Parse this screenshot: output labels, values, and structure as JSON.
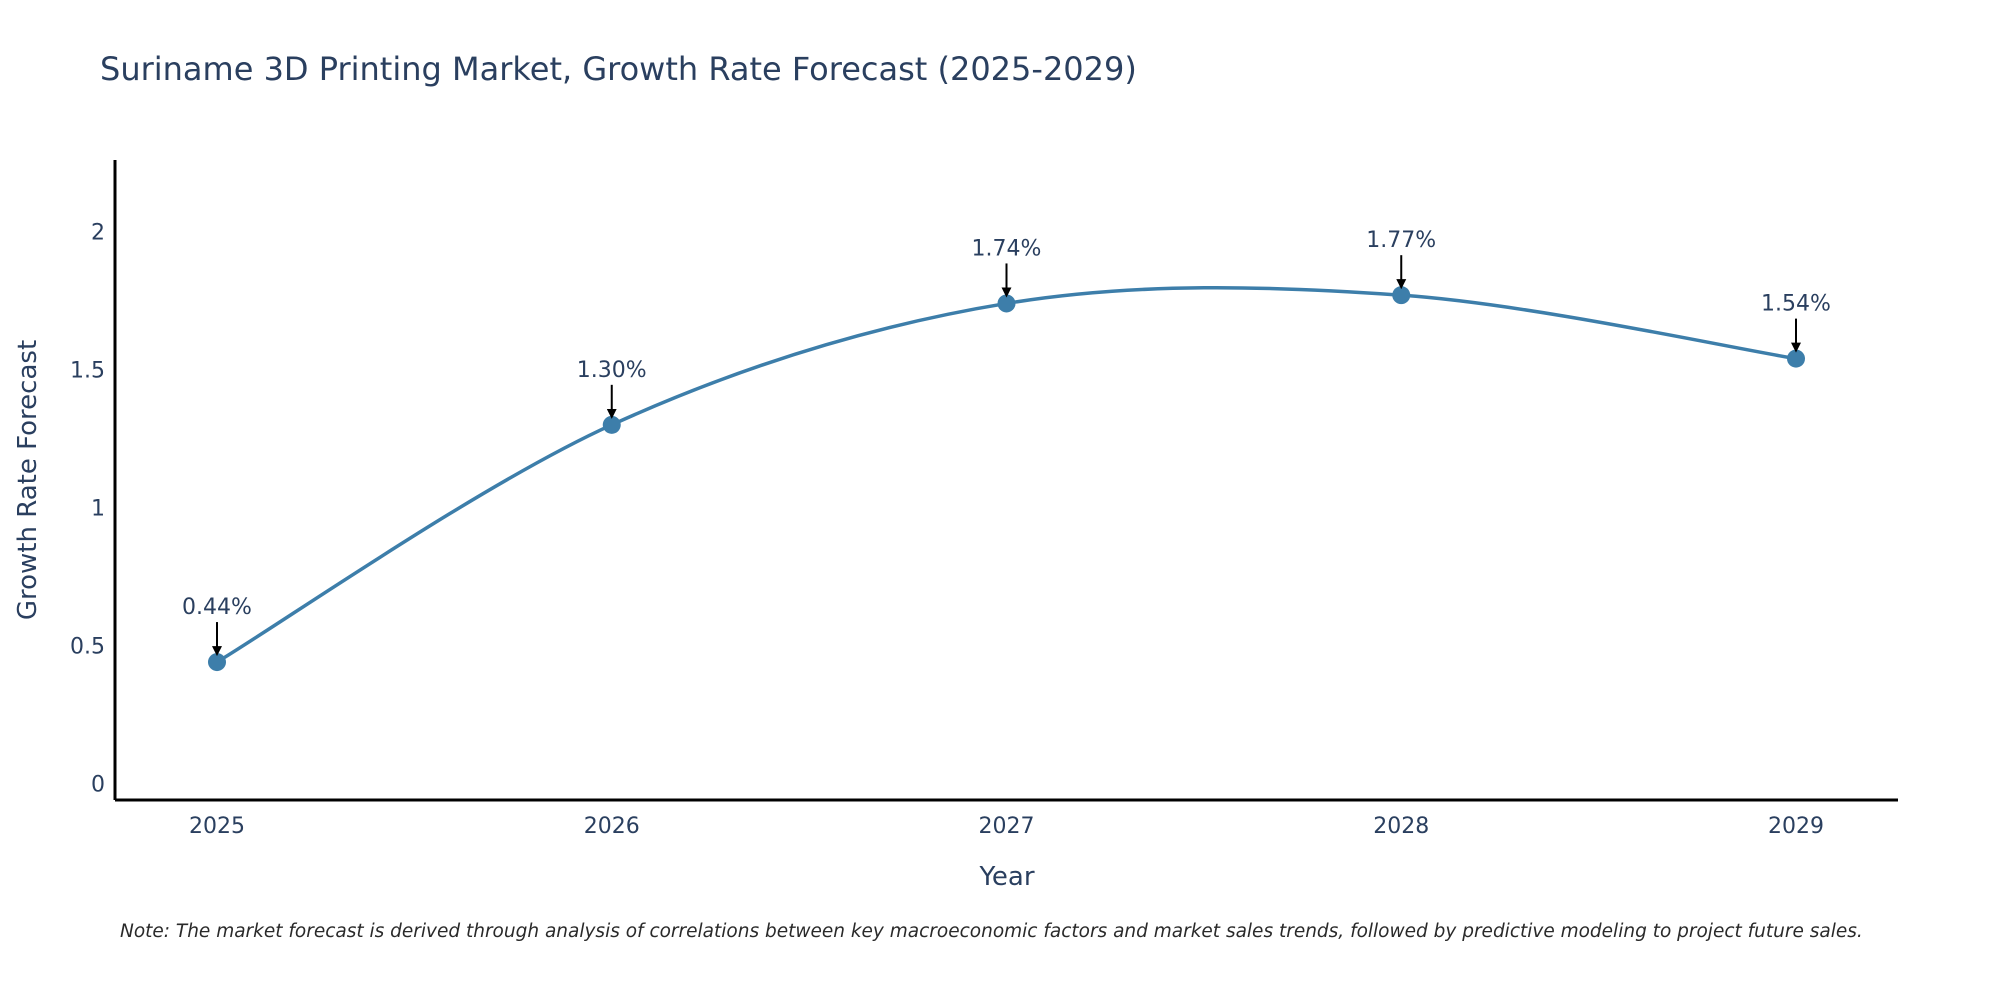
{
  "chart_data": {
    "type": "line",
    "title": "Suriname 3D Printing Market, Growth Rate Forecast (2025-2029)",
    "xlabel": "Year",
    "ylabel": "Growth Rate Forecast",
    "categories": [
      "2025",
      "2026",
      "2027",
      "2028",
      "2029"
    ],
    "values": [
      0.44,
      1.3,
      1.74,
      1.77,
      1.54
    ],
    "data_labels": [
      "0.44%",
      "1.30%",
      "1.74%",
      "1.77%",
      "1.54%"
    ],
    "ylim": [
      -0.06,
      2.26
    ],
    "yticks": [
      0,
      0.5,
      1,
      1.5,
      2
    ],
    "ytick_labels": [
      "0",
      "0.5",
      "1",
      "1.5",
      "2"
    ],
    "line_shape": "spline",
    "grid": false,
    "colors": {
      "line": "#3d7eaa",
      "marker": "#3d7eaa",
      "arrow": "#000000",
      "axis": "#000000",
      "text": "#2a3f5f"
    },
    "note": "Note: The market forecast is derived through analysis of correlations between key macroeconomic factors and market sales trends, followed by predictive modeling to project future sales."
  }
}
